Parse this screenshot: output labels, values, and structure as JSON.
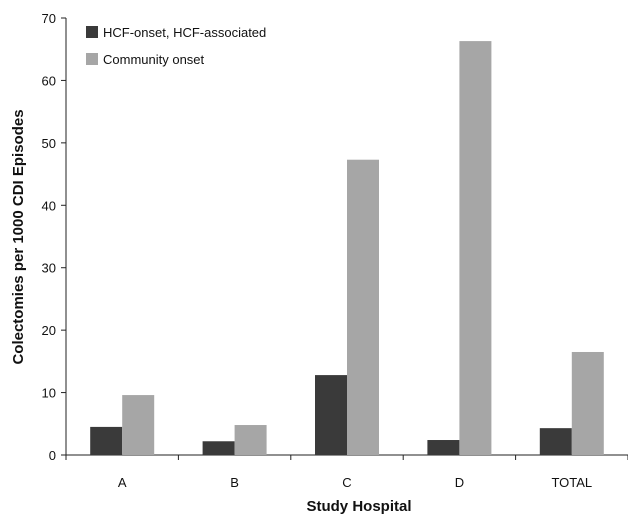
{
  "chart_data": {
    "type": "bar",
    "categories": [
      "A",
      "B",
      "C",
      "D",
      "TOTAL"
    ],
    "series": [
      {
        "name": "HCF-onset, HCF-associated",
        "color": "#3a3a3a",
        "values": [
          4.5,
          2.2,
          12.8,
          2.4,
          4.3
        ]
      },
      {
        "name": "Community onset",
        "color": "#a6a6a6",
        "values": [
          9.6,
          4.8,
          47.3,
          66.3,
          16.5
        ]
      }
    ],
    "xlabel": "Study Hospital",
    "ylabel": "Colectomies per 1000 CDI Episodes",
    "ylim": [
      0,
      70
    ],
    "yticks": [
      0,
      10,
      20,
      30,
      40,
      50,
      60,
      70
    ],
    "grid": false,
    "legend": "top-left"
  }
}
